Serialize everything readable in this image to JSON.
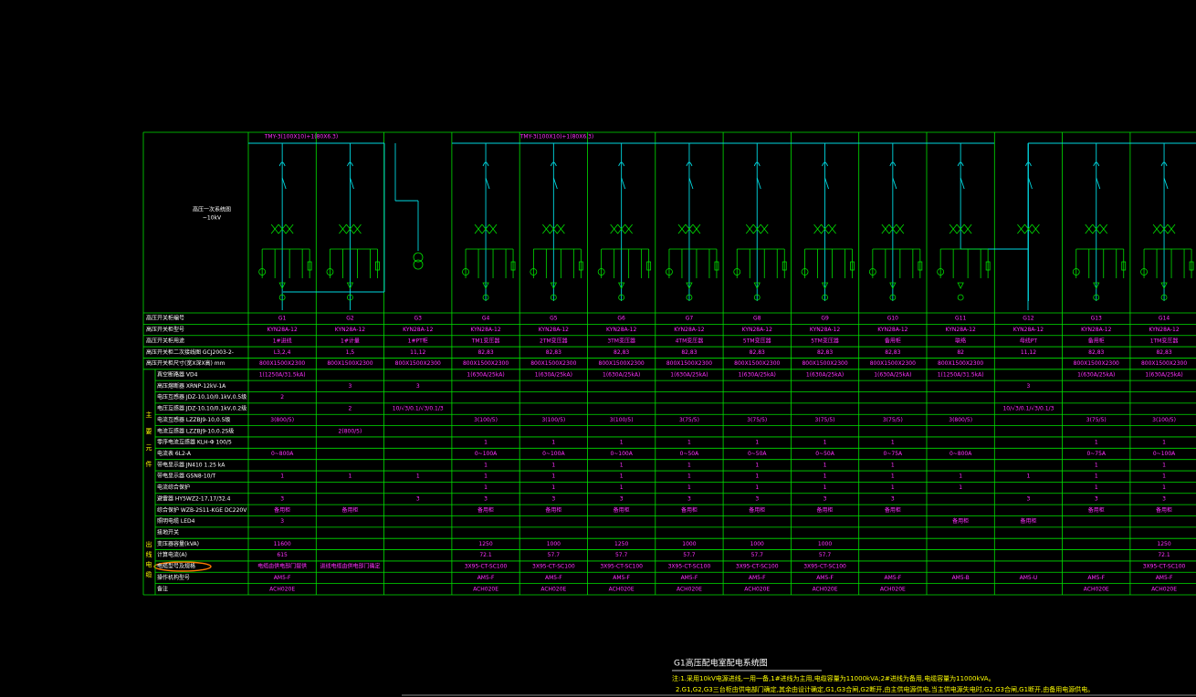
{
  "diagram": {
    "bus_label_left": "TMY-3(100X10)+1(80X6.3)",
    "bus_label_right": "TMY-3(100X10)+1(80X6.3)",
    "system_label": "高压一次系统图",
    "voltage_label": "~10kV",
    "section_label": [
      "主",
      "要",
      "元",
      "件"
    ],
    "outgoing_label": [
      "出",
      "线",
      "电",
      "缆"
    ]
  },
  "table": {
    "columns": [
      "G1",
      "G2",
      "G3",
      "G4",
      "G5",
      "G6",
      "G7",
      "G8",
      "G9",
      "G10",
      "G11",
      "G12",
      "G13",
      "G14"
    ],
    "id_label": "高压开关柜编号",
    "rows": [
      {
        "label": "高压开关柜型号",
        "cells": [
          "KYN28A-12",
          "KYN28A-12",
          "KYN28A-12",
          "KYN28A-12",
          "KYN28A-12",
          "KYN28A-12",
          "KYN28A-12",
          "KYN28A-12",
          "KYN28A-12",
          "KYN28A-12",
          "KYN28A-12",
          "KYN28A-12",
          "KYN28A-12",
          "KYN28A-12"
        ]
      },
      {
        "label": "高压开关柜用途",
        "cells": [
          "1#进线",
          "1#计量",
          "1#PT柜",
          "TM1变压器",
          "2TM变压器",
          "3TM变压器",
          "4TM变压器",
          "5TM变压器",
          "5TM变压器",
          "备用柜",
          "联络",
          "母线PT",
          "备用柜",
          "1TM变压器"
        ]
      },
      {
        "label": "高压开关柜二次接线图 GCJ2003-2-",
        "cells": [
          "L3,2,4",
          "1,5",
          "11,12",
          "82,83",
          "82,83",
          "82,83",
          "82,83",
          "82,83",
          "82,83",
          "82,83",
          "82",
          "11,12",
          "82,83",
          "82,83"
        ]
      },
      {
        "label": "高压开关柜尺寸(宽X深X高) mm",
        "cells": [
          "800X1500X2300",
          "800X1500X2300",
          "800X1500X2300",
          "800X1500X2300",
          "800X1500X2300",
          "800X1500X2300",
          "800X1500X2300",
          "800X1500X2300",
          "800X1500X2300",
          "800X1500X2300",
          "800X1500X2300",
          null,
          "800X1500X2300",
          "800X1500X2300"
        ]
      },
      {
        "label": "真空断路器 VD4",
        "cells": [
          "1(1250A/31.5kA)",
          null,
          null,
          "1(630A/25kA)",
          "1(630A/25kA)",
          "1(630A/25kA)",
          "1(630A/25kA)",
          "1(630A/25kA)",
          "1(630A/25kA)",
          "1(630A/25kA)",
          "1(1250A/31.5kA)",
          null,
          "1(630A/25kA)",
          "1(630A/25kA)"
        ]
      },
      {
        "label": "高压熔断器 XRNP-12kV-1A",
        "cells": [
          null,
          "3",
          "3",
          null,
          null,
          null,
          null,
          null,
          null,
          null,
          null,
          "3",
          null,
          null
        ]
      },
      {
        "label": "电压互感器 JDZ-10,10/0.1kV,0.5级",
        "cells": [
          "2",
          null,
          null,
          null,
          null,
          null,
          null,
          null,
          null,
          null,
          null,
          null,
          null,
          null
        ]
      },
      {
        "label": "电压互感器 JDZ-10,10/0.1kV,0.2级",
        "cells": [
          null,
          "2",
          "10/√3/0.1/√3/0.1/3",
          null,
          null,
          null,
          null,
          null,
          null,
          null,
          null,
          "10/√3/0.1/√3/0.1/3",
          null,
          null
        ]
      },
      {
        "label": "电流互感器 LZZBJ9-10,0.5级",
        "cells": [
          "3(800/5)",
          null,
          null,
          "3(100/5)",
          "3(100/5)",
          "3(100/5)",
          "3(75/5)",
          "3(75/5)",
          "3(75/5)",
          "3(75/5)",
          "3(800/5)",
          null,
          "3(75/5)",
          "3(100/5)"
        ]
      },
      {
        "label": "电流互感器 LZZBJ9-10,0.2S级",
        "cells": [
          null,
          "2(800/5)",
          null,
          null,
          null,
          null,
          null,
          null,
          null,
          null,
          null,
          null,
          null,
          null
        ]
      },
      {
        "label": "零序电流互感器 KLH-Φ 100/5",
        "cells": [
          null,
          null,
          null,
          "1",
          "1",
          "1",
          "1",
          "1",
          "1",
          "1",
          null,
          null,
          "1",
          "1"
        ]
      },
      {
        "label": "电流表 6L2-A",
        "cells": [
          "0~800A",
          null,
          null,
          "0~100A",
          "0~100A",
          "0~100A",
          "0~50A",
          "0~50A",
          "0~50A",
          "0~75A",
          "0~800A",
          null,
          "0~75A",
          "0~100A"
        ]
      },
      {
        "label": "带电显示器 JN410 1.25 kA",
        "cells": [
          null,
          null,
          null,
          "1",
          "1",
          "1",
          "1",
          "1",
          "1",
          "1",
          null,
          null,
          "1",
          "1"
        ]
      },
      {
        "label": "带电显示器 GSN8-10/T",
        "cells": [
          "1",
          "1",
          "1",
          "1",
          "1",
          "1",
          "1",
          "1",
          "1",
          "1",
          "1",
          "1",
          "1",
          "1"
        ]
      },
      {
        "label": "电流综合保护",
        "cells": [
          null,
          null,
          null,
          "1",
          "1",
          "1",
          "1",
          "1",
          "1",
          "1",
          "1",
          null,
          "1",
          "1"
        ]
      },
      {
        "label": "避雷器 HY5WZ2-17,17/32.4",
        "cells": [
          "3",
          null,
          "3",
          "3",
          "3",
          "3",
          "3",
          "3",
          "3",
          "3",
          null,
          "3",
          "3",
          "3"
        ]
      },
      {
        "label": "综合保护 WZB-2S11-KGE DC220V",
        "cells": [
          "备用柜",
          "备用柜",
          null,
          "备用柜",
          "备用柜",
          "备用柜",
          "备用柜",
          "备用柜",
          "备用柜",
          "备用柜",
          null,
          null,
          "备用柜",
          "备用柜"
        ]
      },
      {
        "label": "照明电缆 LED4",
        "cells": [
          "3",
          null,
          null,
          null,
          null,
          null,
          null,
          null,
          null,
          null,
          "备用柜",
          "备用柜",
          null,
          null
        ]
      },
      {
        "label": "接地开关",
        "cells": [
          null,
          null,
          null,
          null,
          null,
          null,
          null,
          null,
          null,
          null,
          null,
          null,
          null,
          null
        ]
      },
      {
        "label": "变压器容量(kVA)",
        "cells": [
          "11600",
          null,
          null,
          "1250",
          "1000",
          "1250",
          "1000",
          "1000",
          "1000",
          null,
          null,
          null,
          null,
          "1250"
        ]
      },
      {
        "label": "计算电流(A)",
        "cells": [
          "615",
          null,
          null,
          "72.1",
          "57.7",
          "57.7",
          "57.7",
          "57.7",
          "57.7",
          null,
          null,
          null,
          null,
          "72.1"
        ]
      },
      {
        "label": "电缆型号及规格",
        "cells": [
          "电缆由供电部门提供",
          "进线电缆由供电部门确定",
          null,
          "3X95-CT-SC100",
          "3X95-CT-SC100",
          "3X95-CT-SC100",
          "3X95-CT-SC100",
          "3X95-CT-SC100",
          "3X95-CT-SC100",
          null,
          null,
          null,
          null,
          "3X95-CT-SC100"
        ]
      },
      {
        "label": "操作机构型号",
        "cells": [
          "AM5-F",
          null,
          null,
          "AM5-F",
          "AM5-F",
          "AM5-F",
          "AM5-F",
          "AM5-F",
          "AM5-F",
          "AM5-F",
          "AM5-B",
          "AM5-U",
          "AM5-F",
          "AM5-F"
        ]
      },
      {
        "label": "备注",
        "cells": [
          "ACH020E",
          null,
          null,
          "ACH020E",
          "ACH020E",
          "ACH020E",
          "ACH020E",
          "ACH020E",
          "ACH020E",
          "ACH020E",
          null,
          null,
          "ACH020E",
          "ACH020E"
        ]
      }
    ]
  },
  "footer": {
    "title": "G1高压配电室配电系统图",
    "note1": "注:1.采用10kV电源进线,一用一备,1#进线为主用,电缆容量为11000kVA;2#进线为备用,电缆容量为11000kVA。",
    "note2": "2.G1,G2,G3三台柜由供电部门确定,其余由设计确定,G1,G3合闸,G2断开,由主供电源供电,当主供电源失电时,G2,G3合闸,G1断开,由备用电源供电。"
  }
}
